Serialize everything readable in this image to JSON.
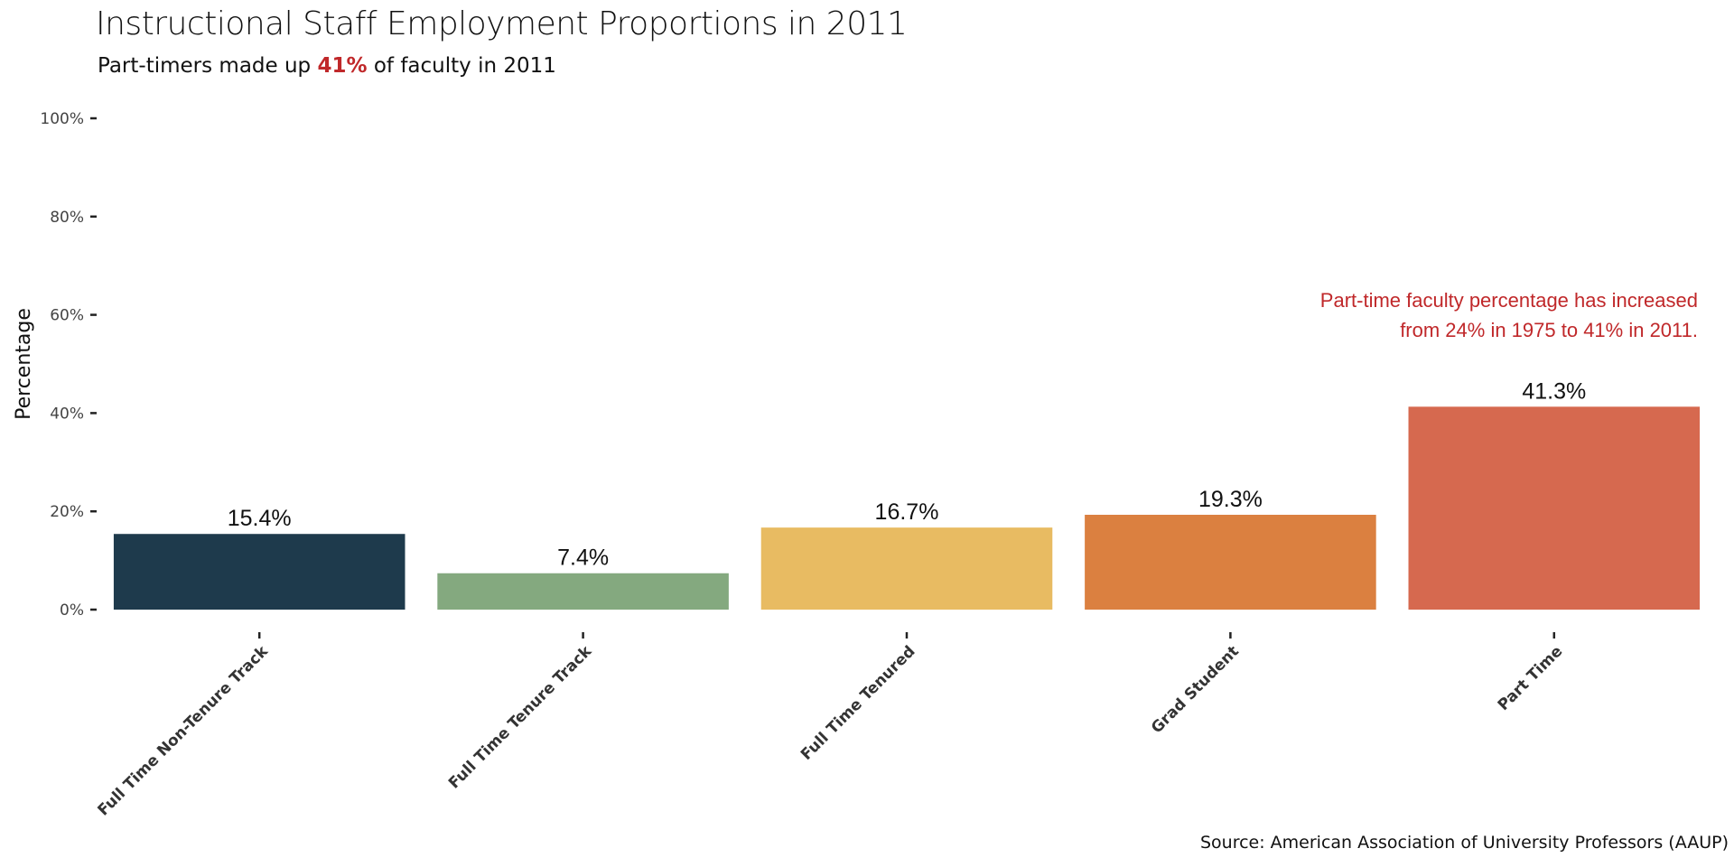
{
  "chart_data": {
    "type": "bar",
    "title": "Instructional Staff Employment Proportions in 2011",
    "subtitle": {
      "prefix": "Part-timers made up ",
      "highlight": "41%",
      "suffix": " of faculty in 2011"
    },
    "ylabel": "Percentage",
    "xlabel": "",
    "ylim": [
      0,
      100
    ],
    "yticks": [
      "0%",
      "20%",
      "40%",
      "60%",
      "80%",
      "100%"
    ],
    "ytick_values": [
      0,
      20,
      40,
      60,
      80,
      100
    ],
    "categories": [
      "Full Time Non-Tenure Track",
      "Full Time Tenure Track",
      "Full Time Tenured",
      "Grad Student",
      "Part Time"
    ],
    "values": [
      15.4,
      7.4,
      16.7,
      19.3,
      41.3
    ],
    "value_labels": [
      "15.4%",
      "7.4%",
      "16.7%",
      "19.3%",
      "41.3%"
    ],
    "colors": [
      "#1e3a4c",
      "#84a97f",
      "#e8bb62",
      "#db8040",
      "#d6694f"
    ],
    "annotation": [
      "Part-time faculty percentage has increased",
      "from 24% in 1975 to 41% in 2011."
    ],
    "annotation_color": "#c0282a",
    "source": "Source: American Association of University Professors (AAUP)",
    "grid": false,
    "legend": "none"
  }
}
